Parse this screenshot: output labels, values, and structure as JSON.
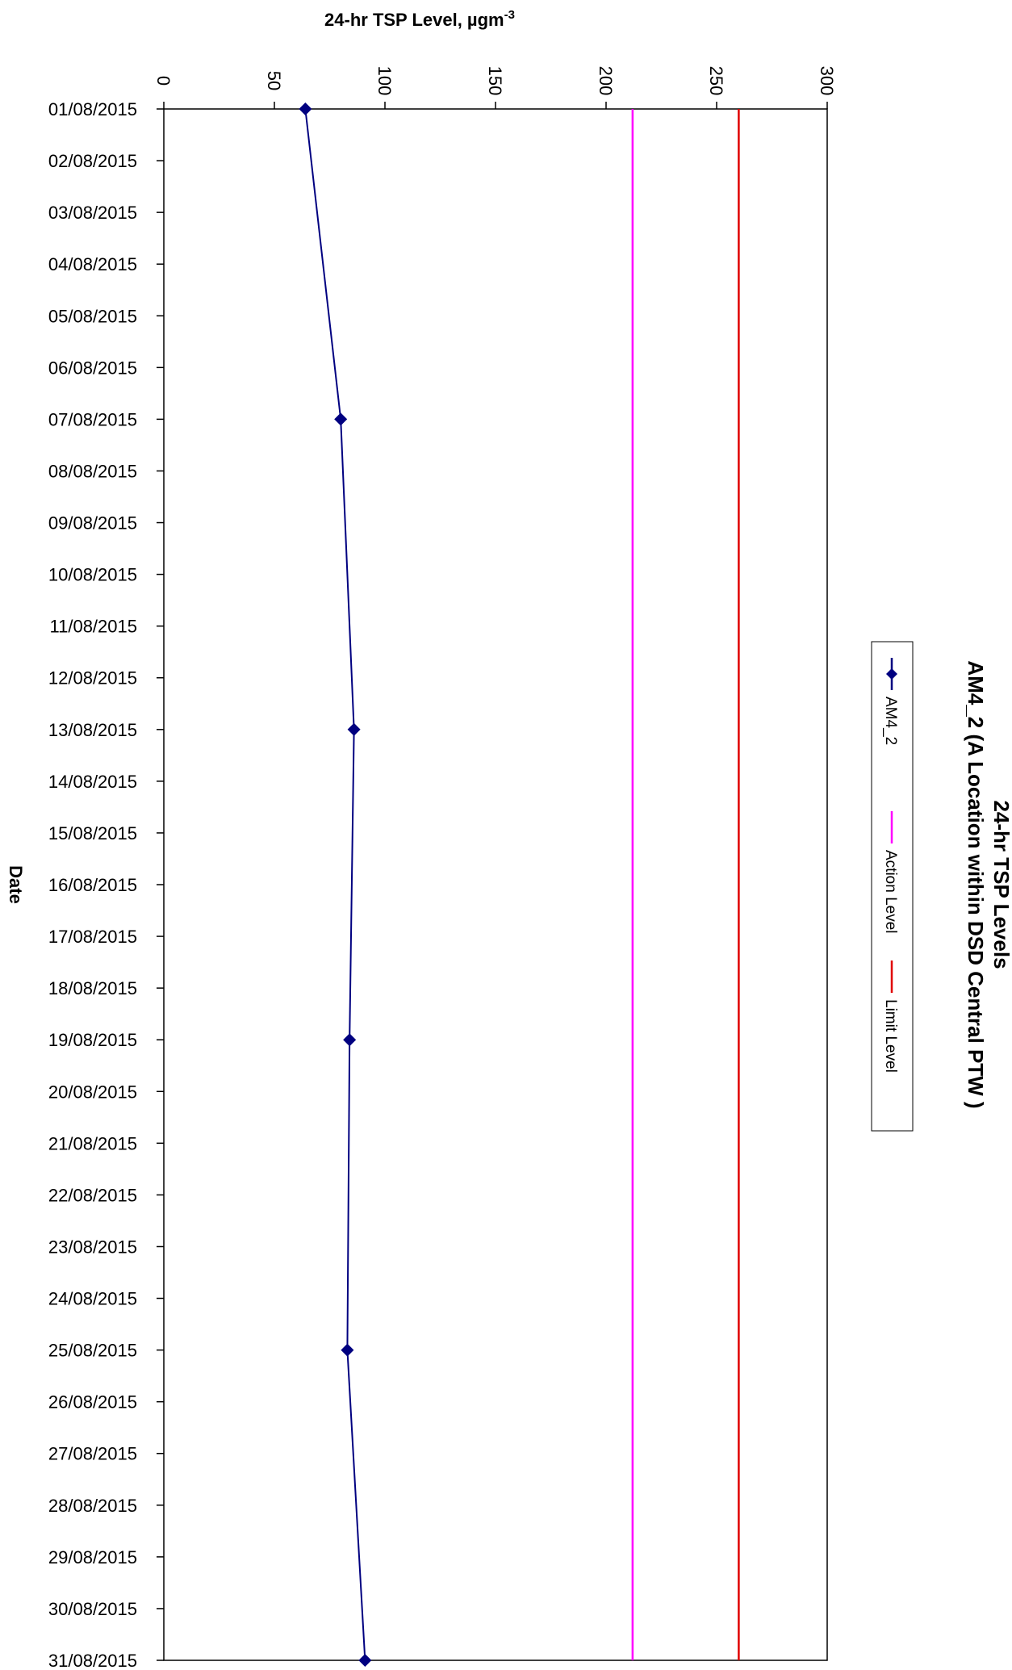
{
  "chart_data": {
    "type": "line",
    "orientation": "rotated-90-clockwise",
    "title": "24-hr TSP Levels",
    "subtitle": "AM4_2 (A Location within DSD Central PTW )",
    "xlabel": "Date",
    "ylabel": "24-hr TSP Level, µgm",
    "ylabel_superscript": "-3",
    "ylim": [
      0,
      300
    ],
    "yticks": [
      0,
      50,
      100,
      150,
      200,
      250,
      300
    ],
    "grid": false,
    "legend_position": "right",
    "categories": [
      "01/08/2015",
      "02/08/2015",
      "03/08/2015",
      "04/08/2015",
      "05/08/2015",
      "06/08/2015",
      "07/08/2015",
      "08/08/2015",
      "09/08/2015",
      "10/08/2015",
      "11/08/2015",
      "12/08/2015",
      "13/08/2015",
      "14/08/2015",
      "15/08/2015",
      "16/08/2015",
      "17/08/2015",
      "18/08/2015",
      "19/08/2015",
      "20/08/2015",
      "21/08/2015",
      "22/08/2015",
      "23/08/2015",
      "24/08/2015",
      "25/08/2015",
      "26/08/2015",
      "27/08/2015",
      "28/08/2015",
      "29/08/2015",
      "30/08/2015",
      "31/08/2015"
    ],
    "series": [
      {
        "name": "AM4_2",
        "color": "#000080",
        "marker": "diamond",
        "points": [
          {
            "x": "01/08/2015",
            "y": 64
          },
          {
            "x": "07/08/2015",
            "y": 80
          },
          {
            "x": "13/08/2015",
            "y": 86
          },
          {
            "x": "19/08/2015",
            "y": 84
          },
          {
            "x": "25/08/2015",
            "y": 83
          },
          {
            "x": "31/08/2015",
            "y": 91
          }
        ]
      },
      {
        "name": "Action Level",
        "color": "#ff00ff",
        "constant": 212
      },
      {
        "name": "Limit Level",
        "color": "#e00000",
        "constant": 260
      }
    ]
  }
}
